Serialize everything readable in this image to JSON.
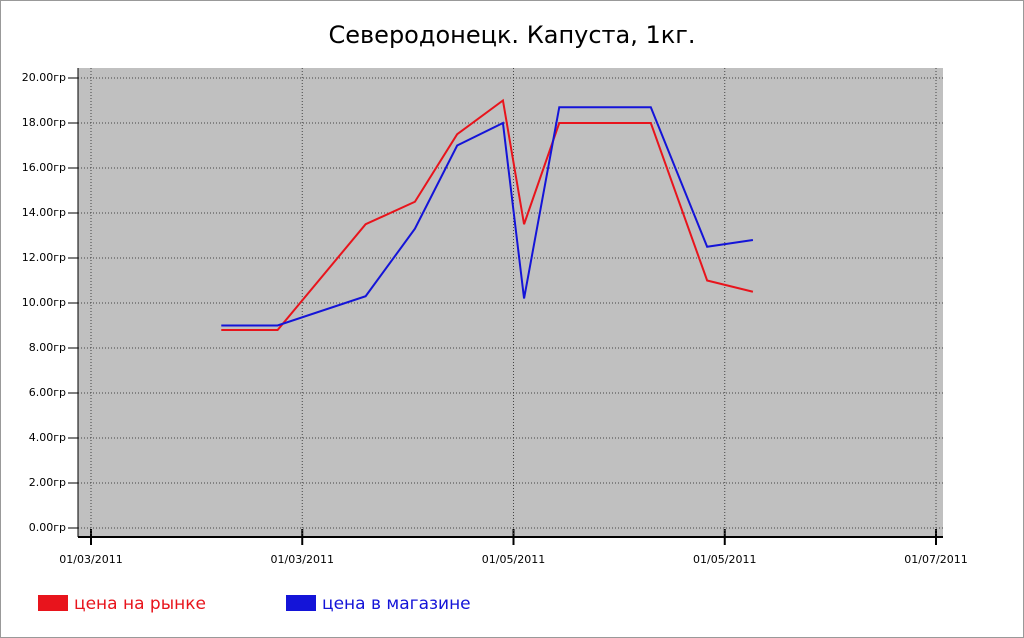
{
  "chart_data": {
    "type": "line",
    "title": "Северодонецк. Капуста, 1кг.",
    "x": [
      37,
      53,
      78,
      92,
      104,
      117,
      123,
      133,
      159,
      175,
      188
    ],
    "series": [
      {
        "name": "цена на рынке",
        "color": "#e8141c",
        "values": [
          8.8,
          8.8,
          13.5,
          14.5,
          17.5,
          19.0,
          13.5,
          18.0,
          18.0,
          11.0,
          10.5
        ]
      },
      {
        "name": "цена в магазине",
        "color": "#1414d8",
        "values": [
          9.0,
          9.0,
          10.3,
          13.3,
          17.0,
          18.0,
          10.2,
          18.7,
          18.7,
          12.5,
          12.8
        ]
      }
    ],
    "xlim": [
      0,
      240
    ],
    "xticks": [
      {
        "value": 0,
        "label": "01/03/2011"
      },
      {
        "value": 60,
        "label": "01/03/2011"
      },
      {
        "value": 120,
        "label": "01/05/2011"
      },
      {
        "value": 180,
        "label": "01/05/2011"
      },
      {
        "value": 240,
        "label": "01/07/2011"
      }
    ],
    "ylim": [
      0,
      20
    ],
    "yticks": [
      {
        "value": 0,
        "label": "0.00гр"
      },
      {
        "value": 2,
        "label": "2.00гр"
      },
      {
        "value": 4,
        "label": "4.00гр"
      },
      {
        "value": 6,
        "label": "6.00гр"
      },
      {
        "value": 8,
        "label": "8.00гр"
      },
      {
        "value": 10,
        "label": "10.00гр"
      },
      {
        "value": 12,
        "label": "12.00гр"
      },
      {
        "value": 14,
        "label": "14.00гр"
      },
      {
        "value": 16,
        "label": "16.00гр"
      },
      {
        "value": 18,
        "label": "18.00гр"
      },
      {
        "value": 20,
        "label": "20.00гр"
      }
    ],
    "grid": true
  }
}
